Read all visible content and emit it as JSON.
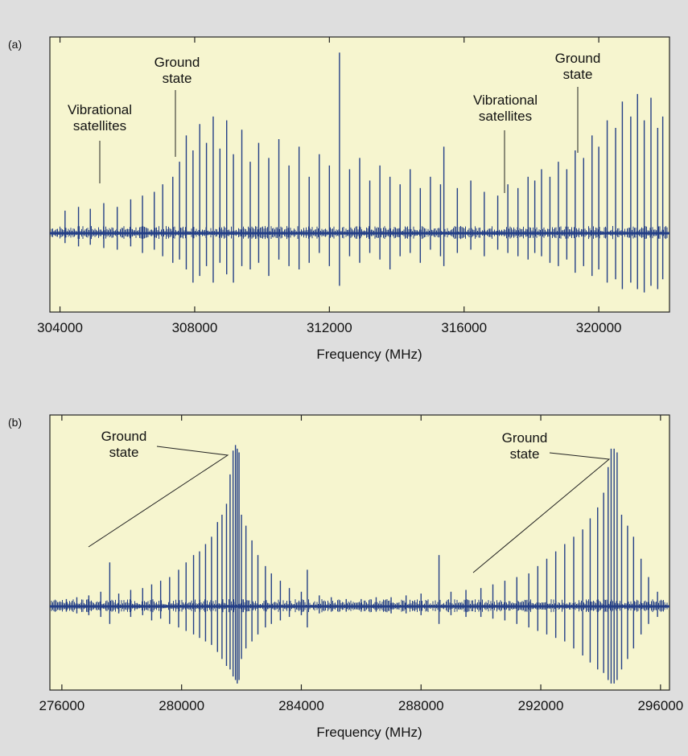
{
  "colors": {
    "background": "#dedede",
    "plot_background": "#f6f5cf",
    "spectrum": "#243f86",
    "axis": "#222222"
  },
  "chart_data": [
    {
      "panel": "(a)",
      "type": "line",
      "title": "",
      "xlabel": "Frequency (MHz)",
      "ylabel": "",
      "xlim": [
        303700,
        322100
      ],
      "ylim": [
        -0.45,
        1.0
      ],
      "xticks": [
        304000,
        308000,
        312000,
        316000,
        320000
      ],
      "xtick_labels": [
        "304000",
        "308000",
        "312000",
        "316000",
        "320000"
      ],
      "grid": false,
      "legend": "none",
      "annotations": [
        {
          "text": [
            "Vibrational",
            "satellites"
          ],
          "x": 305200
        },
        {
          "text": [
            "Ground",
            "state"
          ],
          "x": 307600
        },
        {
          "text": [
            "Vibrational",
            "satellites"
          ],
          "x": 318100
        },
        {
          "text": [
            "Ground",
            "state"
          ],
          "x": 320300
        }
      ],
      "series": [
        {
          "values_description_free": true,
          "lines": [
            [
              304150,
              0.12,
              -0.06
            ],
            [
              304550,
              0.14,
              -0.08
            ],
            [
              304900,
              0.13,
              -0.07
            ],
            [
              305300,
              0.16,
              -0.09
            ],
            [
              305700,
              0.14,
              -0.1
            ],
            [
              306100,
              0.18,
              -0.08
            ],
            [
              306450,
              0.2,
              -0.12
            ],
            [
              306800,
              0.22,
              -0.1
            ],
            [
              307050,
              0.26,
              -0.14
            ],
            [
              307350,
              0.3,
              -0.18
            ],
            [
              307550,
              0.38,
              -0.16
            ],
            [
              307750,
              0.52,
              -0.22
            ],
            [
              307950,
              0.44,
              -0.3
            ],
            [
              308150,
              0.58,
              -0.26
            ],
            [
              308350,
              0.48,
              -0.2
            ],
            [
              308550,
              0.62,
              -0.3
            ],
            [
              308750,
              0.45,
              -0.18
            ],
            [
              308950,
              0.6,
              -0.25
            ],
            [
              309150,
              0.42,
              -0.3
            ],
            [
              309400,
              0.55,
              -0.2
            ],
            [
              309650,
              0.38,
              -0.22
            ],
            [
              309900,
              0.48,
              -0.18
            ],
            [
              310200,
              0.4,
              -0.26
            ],
            [
              310500,
              0.5,
              -0.16
            ],
            [
              310800,
              0.36,
              -0.2
            ],
            [
              311100,
              0.46,
              -0.22
            ],
            [
              311400,
              0.3,
              -0.18
            ],
            [
              311700,
              0.42,
              -0.12
            ],
            [
              312000,
              0.36,
              -0.2
            ],
            [
              312300,
              0.96,
              -0.32
            ],
            [
              312600,
              0.34,
              -0.14
            ],
            [
              312900,
              0.4,
              -0.18
            ],
            [
              313200,
              0.28,
              -0.12
            ],
            [
              313500,
              0.36,
              -0.16
            ],
            [
              313800,
              0.3,
              -0.22
            ],
            [
              314100,
              0.26,
              -0.14
            ],
            [
              314400,
              0.34,
              -0.12
            ],
            [
              314700,
              0.24,
              -0.18
            ],
            [
              315000,
              0.3,
              -0.1
            ],
            [
              315300,
              0.26,
              -0.14
            ],
            [
              315400,
              0.46,
              -0.2
            ],
            [
              315800,
              0.24,
              -0.12
            ],
            [
              316200,
              0.28,
              -0.1
            ],
            [
              316600,
              0.22,
              -0.14
            ],
            [
              317000,
              0.2,
              -0.1
            ],
            [
              317300,
              0.26,
              -0.12
            ],
            [
              317600,
              0.24,
              -0.14
            ],
            [
              317900,
              0.3,
              -0.16
            ],
            [
              318100,
              0.28,
              -0.12
            ],
            [
              318300,
              0.34,
              -0.14
            ],
            [
              318550,
              0.3,
              -0.18
            ],
            [
              318800,
              0.38,
              -0.2
            ],
            [
              319050,
              0.34,
              -0.16
            ],
            [
              319300,
              0.44,
              -0.24
            ],
            [
              319550,
              0.4,
              -0.2
            ],
            [
              319800,
              0.52,
              -0.26
            ],
            [
              320000,
              0.46,
              -0.22
            ],
            [
              320250,
              0.6,
              -0.3
            ],
            [
              320500,
              0.56,
              -0.28
            ],
            [
              320700,
              0.7,
              -0.34
            ],
            [
              320950,
              0.62,
              -0.3
            ],
            [
              321150,
              0.74,
              -0.34
            ],
            [
              321350,
              0.6,
              -0.36
            ],
            [
              321550,
              0.72,
              -0.32
            ],
            [
              321750,
              0.56,
              -0.34
            ],
            [
              321900,
              0.62,
              -0.28
            ]
          ]
        }
      ]
    },
    {
      "panel": "(b)",
      "type": "line",
      "title": "",
      "xlabel": "Frequency (MHz)",
      "ylabel": "",
      "xlim": [
        275600,
        296300
      ],
      "ylim": [
        -0.45,
        1.0
      ],
      "xticks": [
        276000,
        280000,
        284000,
        288000,
        292000,
        296000
      ],
      "xtick_labels": [
        "276000",
        "280000",
        "284000",
        "288000",
        "292000",
        "296000"
      ],
      "grid": false,
      "legend": "none",
      "annotations": [
        {
          "text": [
            "Ground",
            "state"
          ],
          "x": 281800
        },
        {
          "text": [
            "Ground",
            "state"
          ],
          "x": 294400
        }
      ],
      "series": [
        {
          "lines": [
            [
              276150,
              0.04,
              -0.03
            ],
            [
              276500,
              0.05,
              -0.04
            ],
            [
              276900,
              0.06,
              -0.05
            ],
            [
              277300,
              0.08,
              -0.06
            ],
            [
              277600,
              0.24,
              -0.1
            ],
            [
              277900,
              0.07,
              -0.04
            ],
            [
              278300,
              0.09,
              -0.06
            ],
            [
              278700,
              0.1,
              -0.05
            ],
            [
              279000,
              0.12,
              -0.08
            ],
            [
              279300,
              0.14,
              -0.07
            ],
            [
              279600,
              0.16,
              -0.1
            ],
            [
              279900,
              0.2,
              -0.12
            ],
            [
              280150,
              0.24,
              -0.14
            ],
            [
              280400,
              0.28,
              -0.16
            ],
            [
              280600,
              0.3,
              -0.18
            ],
            [
              280800,
              0.34,
              -0.2
            ],
            [
              281000,
              0.38,
              -0.22
            ],
            [
              281200,
              0.46,
              -0.26
            ],
            [
              281350,
              0.5,
              -0.3
            ],
            [
              281500,
              0.56,
              -0.34
            ],
            [
              281620,
              0.72,
              -0.36
            ],
            [
              281720,
              0.85,
              -0.4
            ],
            [
              281800,
              0.88,
              -0.42
            ],
            [
              281860,
              0.86,
              -0.44
            ],
            [
              281920,
              0.84,
              -0.42
            ],
            [
              282000,
              0.5,
              -0.3
            ],
            [
              282150,
              0.44,
              -0.24
            ],
            [
              282350,
              0.36,
              -0.2
            ],
            [
              282550,
              0.28,
              -0.16
            ],
            [
              282800,
              0.22,
              -0.12
            ],
            [
              283000,
              0.18,
              -0.1
            ],
            [
              283300,
              0.14,
              -0.08
            ],
            [
              283600,
              0.1,
              -0.06
            ],
            [
              284000,
              0.08,
              -0.05
            ],
            [
              284200,
              0.2,
              -0.12
            ],
            [
              284600,
              0.06,
              -0.04
            ],
            [
              285000,
              0.05,
              -0.03
            ],
            [
              285500,
              0.04,
              -0.03
            ],
            [
              286000,
              0.04,
              -0.03
            ],
            [
              286500,
              0.05,
              -0.03
            ],
            [
              287000,
              0.05,
              -0.04
            ],
            [
              287500,
              0.06,
              -0.04
            ],
            [
              288000,
              0.07,
              -0.05
            ],
            [
              288600,
              0.28,
              -0.1
            ],
            [
              289000,
              0.08,
              -0.05
            ],
            [
              289500,
              0.09,
              -0.06
            ],
            [
              290000,
              0.1,
              -0.06
            ],
            [
              290400,
              0.12,
              -0.07
            ],
            [
              290800,
              0.14,
              -0.08
            ],
            [
              291200,
              0.16,
              -0.1
            ],
            [
              291600,
              0.18,
              -0.12
            ],
            [
              291900,
              0.22,
              -0.14
            ],
            [
              292200,
              0.26,
              -0.16
            ],
            [
              292500,
              0.3,
              -0.18
            ],
            [
              292800,
              0.34,
              -0.2
            ],
            [
              293100,
              0.38,
              -0.24
            ],
            [
              293400,
              0.42,
              -0.28
            ],
            [
              293650,
              0.48,
              -0.32
            ],
            [
              293900,
              0.54,
              -0.36
            ],
            [
              294100,
              0.62,
              -0.38
            ],
            [
              294250,
              0.76,
              -0.42
            ],
            [
              294350,
              0.86,
              -0.44
            ],
            [
              294450,
              0.86,
              -0.44
            ],
            [
              294550,
              0.84,
              -0.42
            ],
            [
              294700,
              0.5,
              -0.36
            ],
            [
              294900,
              0.44,
              -0.3
            ],
            [
              295100,
              0.38,
              -0.24
            ],
            [
              295350,
              0.26,
              -0.16
            ],
            [
              295600,
              0.16,
              -0.1
            ],
            [
              295900,
              0.08,
              -0.06
            ]
          ]
        }
      ]
    }
  ]
}
